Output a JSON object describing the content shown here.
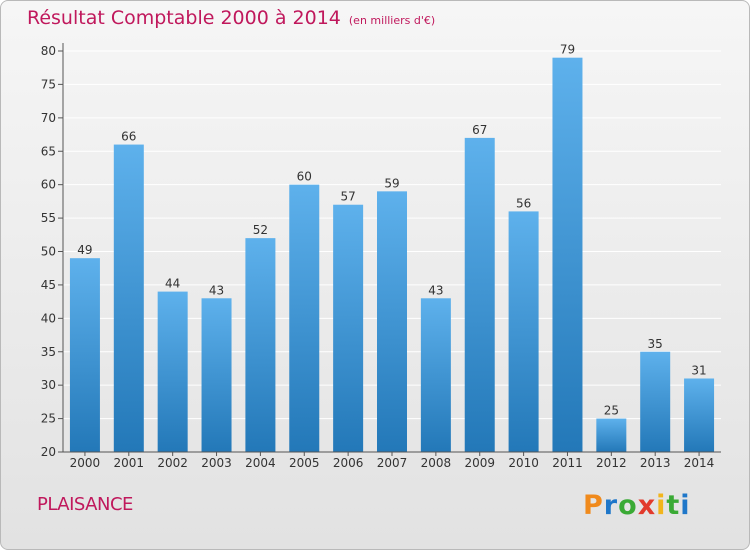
{
  "chart_data": {
    "type": "bar",
    "title": "Résultat Comptable 2000 à 2014",
    "subtitle": "(en milliers d'€)",
    "categories": [
      "2000",
      "2001",
      "2002",
      "2003",
      "2004",
      "2005",
      "2006",
      "2007",
      "2008",
      "2009",
      "2010",
      "2011",
      "2012",
      "2013",
      "2014"
    ],
    "values": [
      49,
      66,
      44,
      43,
      52,
      60,
      57,
      59,
      43,
      67,
      56,
      79,
      25,
      35,
      31
    ],
    "ylim": [
      20,
      80
    ],
    "yticks": [
      20,
      25,
      30,
      35,
      40,
      45,
      50,
      55,
      60,
      65,
      70,
      75,
      80
    ],
    "xlabel": "",
    "ylabel": "",
    "grid": true
  },
  "footer": {
    "city": "PLAISANCE",
    "logo_letters": [
      "P",
      "r",
      "o",
      "x",
      "i",
      "t",
      "i"
    ]
  },
  "colors": {
    "bar_light": "#5eb1ec",
    "bar_dark": "#2378b8",
    "title": "#c0185c"
  }
}
